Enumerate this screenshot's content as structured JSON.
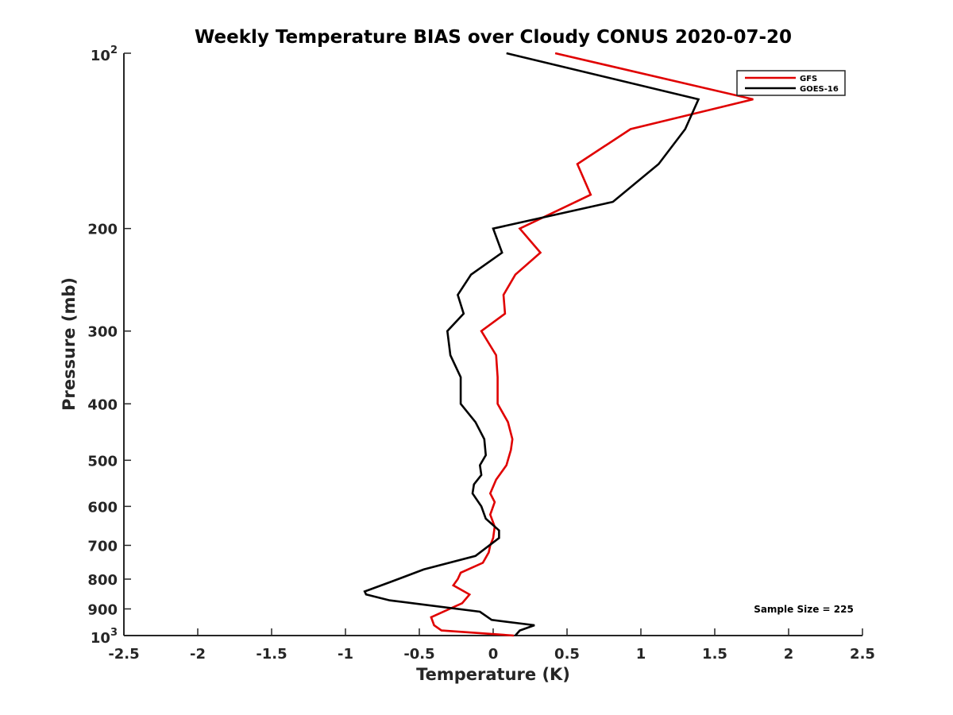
{
  "chart_data": {
    "type": "line",
    "title": "Weekly Temperature BIAS over Cloudy CONUS 2020-07-20",
    "xlabel": "Temperature (K)",
    "ylabel": "Pressure (mb)",
    "xlim": [
      -2.5,
      2.5
    ],
    "ylim": [
      1000,
      100
    ],
    "y_scale": "log",
    "x_ticks": [
      "-2.5",
      "-2",
      "-1.5",
      "-1",
      "-0.5",
      "0",
      "0.5",
      "1",
      "1.5",
      "2",
      "2.5"
    ],
    "x_tick_values": [
      -2.5,
      -2,
      -1.5,
      -1,
      -0.5,
      0,
      0.5,
      1,
      1.5,
      2,
      2.5
    ],
    "y_ticks": [
      {
        "value": 200,
        "label": "200"
      },
      {
        "value": 300,
        "label": "300"
      },
      {
        "value": 400,
        "label": "400"
      },
      {
        "value": 500,
        "label": "500"
      },
      {
        "value": 600,
        "label": "600"
      },
      {
        "value": 700,
        "label": "700"
      },
      {
        "value": 800,
        "label": "800"
      },
      {
        "value": 900,
        "label": "900"
      }
    ],
    "y_tick_top": {
      "value": 100,
      "base": "10",
      "exp": "2"
    },
    "y_tick_bottom": {
      "value": 1000,
      "base": "10",
      "exp": "3"
    },
    "grid": false,
    "legend_position": "top-right",
    "annotation": "Sample Size = 225",
    "series": [
      {
        "name": "GFS",
        "color": "#e00000",
        "points": [
          {
            "x": 0.42,
            "y": 100
          },
          {
            "x": 1.76,
            "y": 120
          },
          {
            "x": 0.93,
            "y": 135
          },
          {
            "x": 0.57,
            "y": 155
          },
          {
            "x": 0.66,
            "y": 175
          },
          {
            "x": 0.18,
            "y": 200
          },
          {
            "x": 0.32,
            "y": 220
          },
          {
            "x": 0.15,
            "y": 240
          },
          {
            "x": 0.07,
            "y": 260
          },
          {
            "x": 0.08,
            "y": 280
          },
          {
            "x": -0.08,
            "y": 300
          },
          {
            "x": 0.02,
            "y": 330
          },
          {
            "x": 0.03,
            "y": 360
          },
          {
            "x": 0.03,
            "y": 400
          },
          {
            "x": 0.1,
            "y": 430
          },
          {
            "x": 0.13,
            "y": 460
          },
          {
            "x": 0.12,
            "y": 480
          },
          {
            "x": 0.09,
            "y": 510
          },
          {
            "x": 0.02,
            "y": 540
          },
          {
            "x": -0.02,
            "y": 570
          },
          {
            "x": 0.01,
            "y": 590
          },
          {
            "x": -0.02,
            "y": 620
          },
          {
            "x": 0.01,
            "y": 650
          },
          {
            "x": 0.0,
            "y": 680
          },
          {
            "x": -0.02,
            "y": 700
          },
          {
            "x": -0.03,
            "y": 720
          },
          {
            "x": -0.07,
            "y": 750
          },
          {
            "x": -0.22,
            "y": 780
          },
          {
            "x": -0.24,
            "y": 800
          },
          {
            "x": -0.27,
            "y": 820
          },
          {
            "x": -0.16,
            "y": 850
          },
          {
            "x": -0.21,
            "y": 880
          },
          {
            "x": -0.42,
            "y": 930
          },
          {
            "x": -0.4,
            "y": 960
          },
          {
            "x": -0.35,
            "y": 980
          },
          {
            "x": 0.14,
            "y": 1000
          }
        ]
      },
      {
        "name": "GOES-16",
        "color": "#000000",
        "points": [
          {
            "x": 0.09,
            "y": 100
          },
          {
            "x": 1.39,
            "y": 120
          },
          {
            "x": 1.3,
            "y": 135
          },
          {
            "x": 1.12,
            "y": 155
          },
          {
            "x": 0.81,
            "y": 180
          },
          {
            "x": 0.0,
            "y": 200
          },
          {
            "x": 0.06,
            "y": 220
          },
          {
            "x": -0.15,
            "y": 240
          },
          {
            "x": -0.24,
            "y": 260
          },
          {
            "x": -0.2,
            "y": 280
          },
          {
            "x": -0.31,
            "y": 300
          },
          {
            "x": -0.29,
            "y": 330
          },
          {
            "x": -0.22,
            "y": 360
          },
          {
            "x": -0.22,
            "y": 400
          },
          {
            "x": -0.12,
            "y": 430
          },
          {
            "x": -0.06,
            "y": 460
          },
          {
            "x": -0.05,
            "y": 490
          },
          {
            "x": -0.09,
            "y": 510
          },
          {
            "x": -0.08,
            "y": 530
          },
          {
            "x": -0.13,
            "y": 550
          },
          {
            "x": -0.14,
            "y": 570
          },
          {
            "x": -0.08,
            "y": 600
          },
          {
            "x": -0.05,
            "y": 630
          },
          {
            "x": 0.04,
            "y": 660
          },
          {
            "x": 0.04,
            "y": 680
          },
          {
            "x": -0.12,
            "y": 730
          },
          {
            "x": -0.47,
            "y": 770
          },
          {
            "x": -0.7,
            "y": 810
          },
          {
            "x": -0.87,
            "y": 840
          },
          {
            "x": -0.86,
            "y": 850
          },
          {
            "x": -0.7,
            "y": 870
          },
          {
            "x": -0.09,
            "y": 910
          },
          {
            "x": -0.01,
            "y": 940
          },
          {
            "x": 0.28,
            "y": 960
          },
          {
            "x": 0.18,
            "y": 980
          },
          {
            "x": 0.15,
            "y": 1000
          }
        ]
      }
    ]
  }
}
